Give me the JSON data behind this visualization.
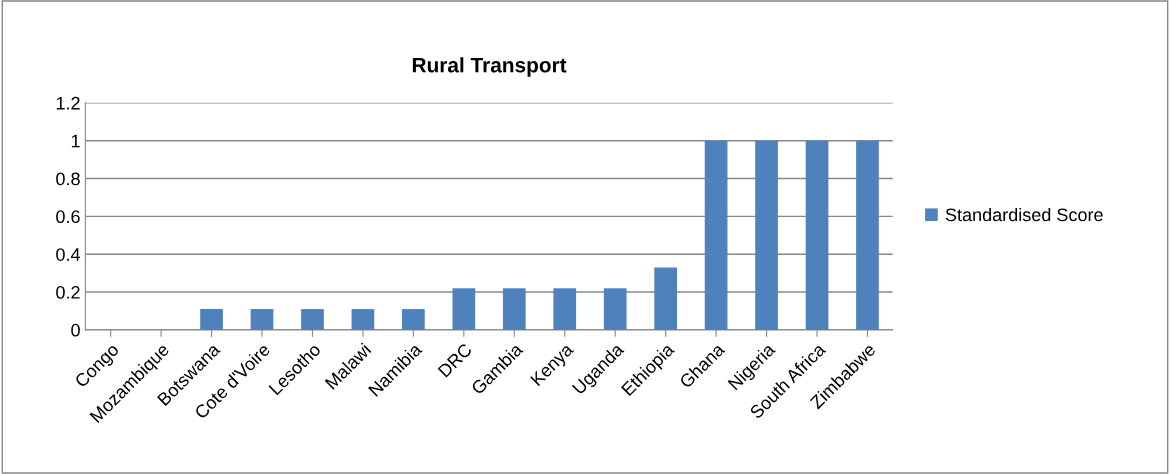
{
  "chart_data": {
    "type": "bar",
    "title": "Rural Transport",
    "categories": [
      "Congo",
      "Mozambique",
      "Botswana",
      "Cote d'Voire",
      "Lesotho",
      "Malawi",
      "Namibia",
      "DRC",
      "Gambia",
      "Kenya",
      "Uganda",
      "Ethiopia",
      "Ghana",
      "Nigeria",
      "South Africa",
      "Zimbabwe"
    ],
    "series": [
      {
        "name": "Standardised Score",
        "color": "#4f81bd",
        "values": [
          0,
          0,
          0.11,
          0.11,
          0.11,
          0.11,
          0.11,
          0.22,
          0.22,
          0.22,
          0.22,
          0.33,
          1,
          1,
          1,
          1
        ]
      }
    ],
    "ylim": [
      0,
      1.2
    ],
    "yticks": [
      0,
      0.2,
      0.4,
      0.6,
      0.8,
      1,
      1.2
    ],
    "grid": "y",
    "legend": "right"
  }
}
